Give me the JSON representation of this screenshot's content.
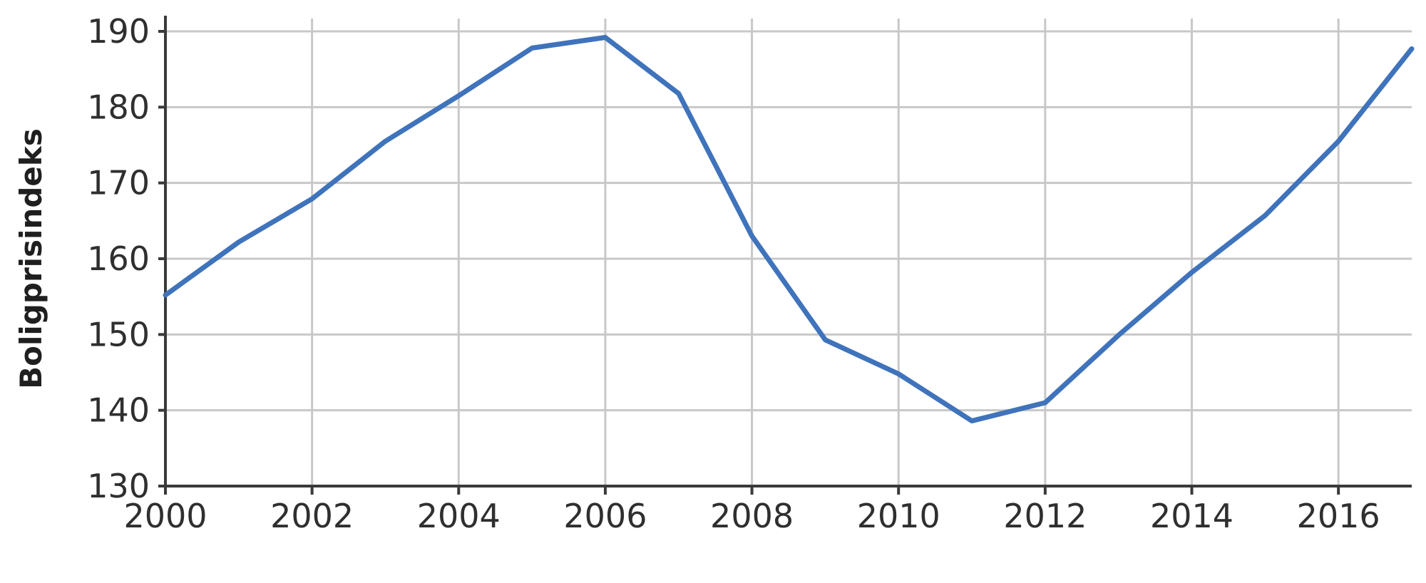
{
  "chart_data": {
    "type": "line",
    "title": "",
    "xlabel": "",
    "ylabel": "Boligprisindeks",
    "grid": true,
    "xlim": [
      2000,
      2017
    ],
    "ylim": [
      130,
      190
    ],
    "x_ticks": [
      2000,
      2002,
      2004,
      2006,
      2008,
      2010,
      2012,
      2014,
      2016
    ],
    "x_tick_labels": [
      "2000",
      "2002",
      "2004",
      "2006",
      "2008",
      "2010",
      "2012",
      "2014",
      "2016"
    ],
    "y_ticks": [
      130,
      140,
      150,
      160,
      170,
      180,
      190
    ],
    "y_tick_labels": [
      "130",
      "140",
      "150",
      "160",
      "170",
      "180",
      "190"
    ],
    "x": [
      2000,
      2001,
      2002,
      2003,
      2004,
      2005,
      2006,
      2007,
      2008,
      2009,
      2010,
      2011,
      2012,
      2013,
      2014,
      2015,
      2016,
      2017
    ],
    "series": [
      {
        "values": [
          155.2,
          162.2,
          167.9,
          175.5,
          181.5,
          187.8,
          189.2,
          181.8,
          163.0,
          149.3,
          144.8,
          138.6,
          141.0,
          149.9,
          158.2,
          165.7,
          175.5,
          187.7
        ],
        "color": "#3f73bb"
      }
    ],
    "colors": {
      "grid": "#c8c8c8",
      "axis": "#3a3a3a",
      "text": "#2f2f2f"
    }
  }
}
